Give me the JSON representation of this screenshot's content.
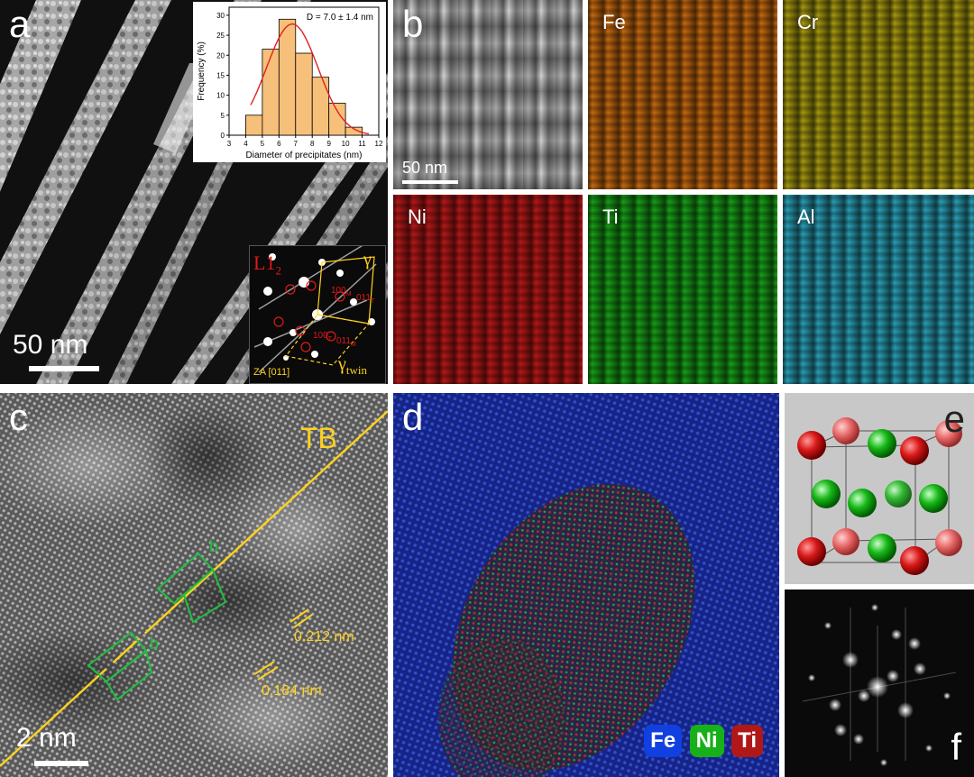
{
  "panel_a": {
    "label": "a",
    "scale_bar": "50 nm",
    "histogram": {
      "chart_data": {
        "type": "bar",
        "title": "D = 7.0 ± 1.4 nm",
        "xlabel": "Diameter of precipitates (nm)",
        "ylabel": "Frequency (%)",
        "xlim": [
          3,
          12
        ],
        "ylim": [
          0,
          32
        ],
        "x_ticks": [
          "3",
          "4",
          "5",
          "6",
          "7",
          "8",
          "9",
          "10",
          "11",
          "12"
        ],
        "y_ticks": [
          "0",
          "5",
          "10",
          "15",
          "20",
          "25",
          "30"
        ],
        "bins": [
          [
            4,
            5
          ],
          [
            5,
            6
          ],
          [
            6,
            7
          ],
          [
            7,
            8
          ],
          [
            8,
            9
          ],
          [
            9,
            10
          ],
          [
            10,
            11
          ]
        ],
        "values": [
          5,
          21.5,
          29,
          20.5,
          14.5,
          8,
          2
        ],
        "fit": "gaussian",
        "fit_mean": 6.8,
        "fit_peak": 27.8,
        "fit_sigma": 1.55,
        "bar_color": "#f7c07a",
        "fit_color": "#e02020"
      }
    },
    "saed": {
      "l12": "L1",
      "l12_sub": "2",
      "gamma": "γ",
      "gamma_twin": "γ",
      "twin_sub": "twin",
      "spot1": "100",
      "spot1_sub": "M",
      "spot2": "011",
      "spot2_sub": "T",
      "spot3": "100",
      "spot3_sub": "T",
      "spot4": "011",
      "spot4_sub": "M",
      "zone_axis": "ZA [011]"
    }
  },
  "panel_b": {
    "label": "b",
    "scale_bar": "50 nm",
    "maps": [
      {
        "element": "Fe",
        "color": "#c86a10"
      },
      {
        "element": "Cr",
        "color": "#a89a10"
      },
      {
        "element": "Ni",
        "color": "#b81818"
      },
      {
        "element": "Ti",
        "color": "#18a018"
      },
      {
        "element": "Al",
        "color": "#2aa0b8"
      }
    ]
  },
  "panel_c": {
    "label": "c",
    "tb_label": "TB",
    "spacing1": "0.212 nm",
    "spacing2": "0.184 nm",
    "marker1": "b",
    "marker2": "b",
    "scale_bar": "2 nm"
  },
  "panel_d": {
    "label": "d",
    "legend": [
      {
        "text": "Fe",
        "color": "#1040e0"
      },
      {
        "text": "Ni",
        "color": "#18b018"
      },
      {
        "text": "Ti",
        "color": "#b01818"
      }
    ]
  },
  "panel_e": {
    "label": "e"
  },
  "panel_f": {
    "label": "f"
  },
  "colors": {
    "annotation_yellow": "#ffd21e",
    "twin_green": "#20c040",
    "saed_red": "#e01818"
  }
}
